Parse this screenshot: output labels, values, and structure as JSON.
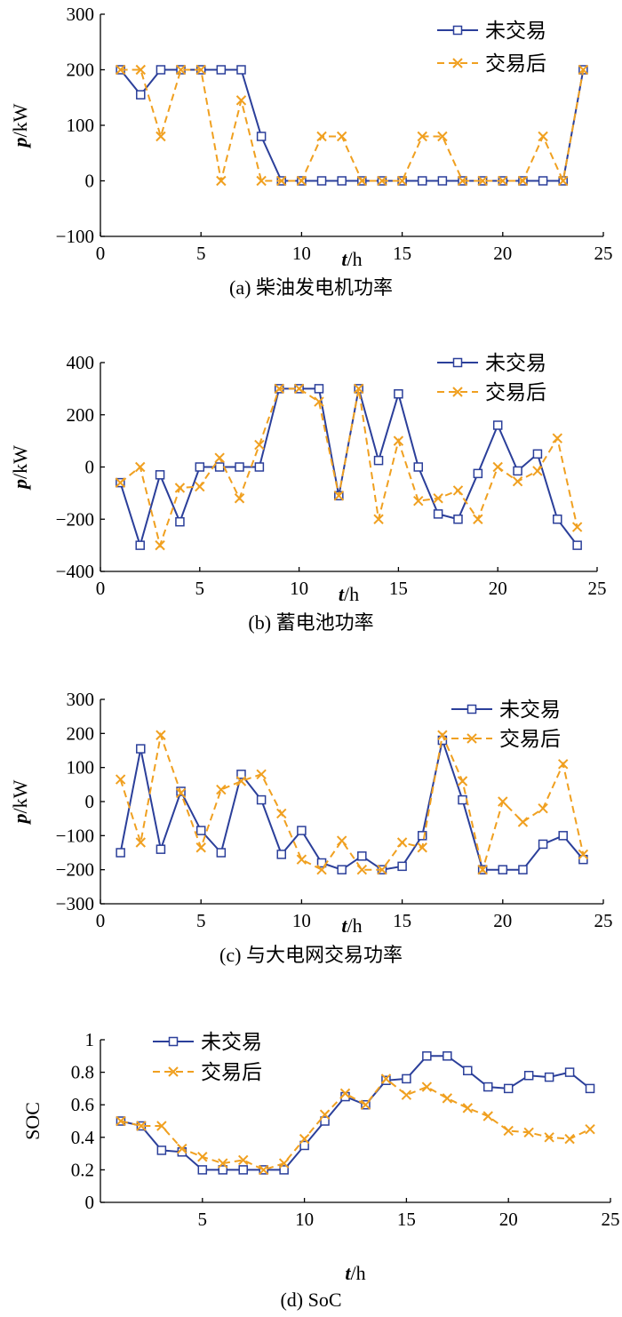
{
  "chart_data": [
    {
      "type": "line",
      "caption": "(a)  柴油发电机功率",
      "ylabel_var": "p",
      "ylabel_unit": "/kW",
      "xlabel_var": "t",
      "xlabel_unit": "/h",
      "xlim": [
        0,
        25
      ],
      "ylim": [
        -100,
        300
      ],
      "xticks": [
        0,
        5,
        10,
        15,
        20,
        25
      ],
      "yticks": [
        -100,
        0,
        100,
        200,
        300
      ],
      "ytick_labels": [
        "−100",
        "0",
        "100",
        "200",
        "300"
      ],
      "legend_position": "top-right",
      "x": [
        1,
        2,
        3,
        4,
        5,
        6,
        7,
        8,
        9,
        10,
        11,
        12,
        13,
        14,
        15,
        16,
        17,
        18,
        19,
        20,
        21,
        22,
        23,
        24
      ],
      "series": [
        {
          "name": "未交易",
          "color": "#2b3f9a",
          "marker": "square",
          "dash": "solid",
          "values": [
            200,
            155,
            200,
            200,
            200,
            200,
            200,
            80,
            0,
            0,
            0,
            0,
            0,
            0,
            0,
            0,
            0,
            0,
            0,
            0,
            0,
            0,
            0,
            200
          ]
        },
        {
          "name": "交易后",
          "color": "#f0a020",
          "marker": "x",
          "dash": "dashed",
          "values": [
            200,
            200,
            80,
            200,
            200,
            0,
            145,
            0,
            0,
            0,
            80,
            80,
            0,
            0,
            0,
            80,
            80,
            0,
            0,
            0,
            0,
            80,
            0,
            200
          ]
        }
      ]
    },
    {
      "type": "line",
      "caption": "(b)  蓄电池功率",
      "ylabel_var": "p",
      "ylabel_unit": "/kW",
      "xlabel_var": "t",
      "xlabel_unit": "/h",
      "xlim": [
        0,
        25
      ],
      "ylim": [
        -400,
        400
      ],
      "xticks": [
        0,
        5,
        10,
        15,
        20,
        25
      ],
      "yticks": [
        -400,
        -200,
        0,
        200,
        400
      ],
      "ytick_labels": [
        "−400",
        "−200",
        "0",
        "200",
        "400"
      ],
      "legend_position": "top-right",
      "x": [
        1,
        2,
        3,
        4,
        5,
        6,
        7,
        8,
        9,
        10,
        11,
        12,
        13,
        14,
        15,
        16,
        17,
        18,
        19,
        20,
        21,
        22,
        23,
        24
      ],
      "series": [
        {
          "name": "未交易",
          "color": "#2b3f9a",
          "marker": "square",
          "dash": "solid",
          "values": [
            -60,
            -300,
            -30,
            -210,
            0,
            0,
            0,
            0,
            300,
            300,
            300,
            -110,
            300,
            25,
            280,
            0,
            -180,
            -200,
            -25,
            160,
            -15,
            50,
            -200,
            -300
          ]
        },
        {
          "name": "交易后",
          "color": "#f0a020",
          "marker": "x",
          "dash": "dashed",
          "values": [
            -60,
            0,
            -300,
            -80,
            -75,
            35,
            -120,
            85,
            300,
            300,
            250,
            -110,
            300,
            -200,
            100,
            -130,
            -120,
            -90,
            -200,
            0,
            -55,
            -15,
            110,
            -230
          ]
        }
      ]
    },
    {
      "type": "line",
      "caption": "(c)  与大电网交易功率",
      "ylabel_var": "p",
      "ylabel_unit": "/kW",
      "xlabel_var": "t",
      "xlabel_unit": "/h",
      "xlim": [
        0,
        25
      ],
      "ylim": [
        -300,
        300
      ],
      "xticks": [
        0,
        5,
        10,
        15,
        20,
        25
      ],
      "yticks": [
        -300,
        -200,
        -100,
        0,
        100,
        200,
        300
      ],
      "ytick_labels": [
        "−300",
        "−200",
        "−100",
        "0",
        "100",
        "200",
        "300"
      ],
      "legend_position": "top-right",
      "x": [
        1,
        2,
        3,
        4,
        5,
        6,
        7,
        8,
        9,
        10,
        11,
        12,
        13,
        14,
        15,
        16,
        17,
        18,
        19,
        20,
        21,
        22,
        23,
        24
      ],
      "series": [
        {
          "name": "未交易",
          "color": "#2b3f9a",
          "marker": "square",
          "dash": "solid",
          "values": [
            -150,
            155,
            -140,
            30,
            -85,
            -150,
            80,
            5,
            -155,
            -85,
            -180,
            -200,
            -160,
            -200,
            -190,
            -100,
            180,
            5,
            -200,
            -200,
            -200,
            -125,
            -100,
            -170
          ]
        },
        {
          "name": "交易后",
          "color": "#f0a020",
          "marker": "x",
          "dash": "dashed",
          "values": [
            65,
            -120,
            195,
            25,
            -135,
            35,
            60,
            80,
            -35,
            -170,
            -200,
            -115,
            -200,
            -200,
            -120,
            -135,
            195,
            60,
            -200,
            0,
            -60,
            -20,
            110,
            -155
          ]
        }
      ]
    },
    {
      "type": "line",
      "caption": "(d)  SoC",
      "ylabel_var": "",
      "ylabel_unit": "SOC",
      "xlabel_var": "t",
      "xlabel_unit": "/h",
      "xlim": [
        0,
        25
      ],
      "ylim": [
        0,
        1
      ],
      "xticks": [
        5,
        10,
        15,
        20,
        25
      ],
      "yticks": [
        0,
        0.2,
        0.4,
        0.6,
        0.8,
        1
      ],
      "ytick_labels": [
        "0",
        "0.2",
        "0.4",
        "0.6",
        "0.8",
        "1"
      ],
      "legend_position": "top-left",
      "x": [
        1,
        2,
        3,
        4,
        5,
        6,
        7,
        8,
        9,
        10,
        11,
        12,
        13,
        14,
        15,
        16,
        17,
        18,
        19,
        20,
        21,
        22,
        23,
        24
      ],
      "series": [
        {
          "name": "未交易",
          "color": "#2b3f9a",
          "marker": "square",
          "dash": "solid",
          "values": [
            0.5,
            0.47,
            0.32,
            0.31,
            0.2,
            0.2,
            0.2,
            0.2,
            0.2,
            0.35,
            0.5,
            0.65,
            0.6,
            0.75,
            0.76,
            0.9,
            0.9,
            0.81,
            0.71,
            0.7,
            0.78,
            0.77,
            0.8,
            0.7
          ]
        },
        {
          "name": "交易后",
          "color": "#f0a020",
          "marker": "x",
          "dash": "dashed",
          "values": [
            0.5,
            0.47,
            0.47,
            0.33,
            0.28,
            0.24,
            0.26,
            0.2,
            0.24,
            0.39,
            0.54,
            0.67,
            0.6,
            0.76,
            0.66,
            0.71,
            0.64,
            0.58,
            0.53,
            0.44,
            0.43,
            0.4,
            0.39,
            0.45
          ]
        }
      ]
    }
  ]
}
